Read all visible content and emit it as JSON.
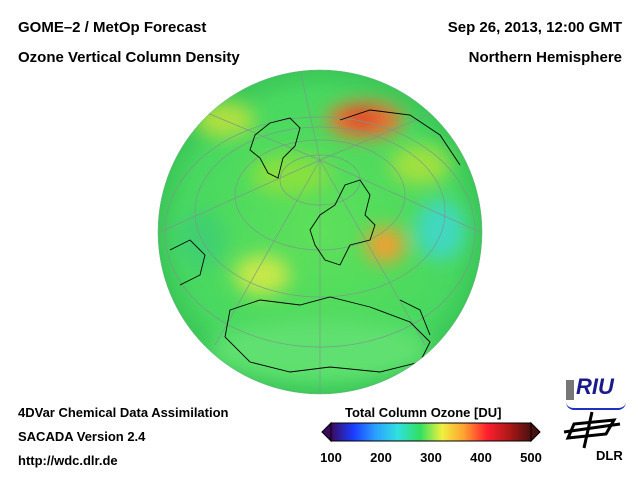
{
  "header": {
    "title_left_1": "GOME–2 / MetOp Forecast",
    "title_left_2": "Ozone Vertical Column Density",
    "title_right_1": "Sep 26, 2013, 12:00 GMT",
    "title_right_2": "Northern Hemisphere"
  },
  "footer": {
    "line1": "4DVar Chemical Data Assimilation",
    "line2": "SACADA Version 2.4",
    "line3": "http://wdc.dlr.de"
  },
  "colorbar": {
    "title": "Total Column Ozone [DU]",
    "ticks": [
      "100",
      "200",
      "300",
      "400",
      "500"
    ],
    "range": [
      100,
      500
    ],
    "colors": [
      "#3a0a5e",
      "#1a3cff",
      "#2aa0ff",
      "#30e0e0",
      "#30e060",
      "#f0f040",
      "#ffa030",
      "#ff2030",
      "#b01818",
      "#4a1010"
    ]
  },
  "logos": {
    "riu": "RIU",
    "dlr": "DLR"
  }
}
